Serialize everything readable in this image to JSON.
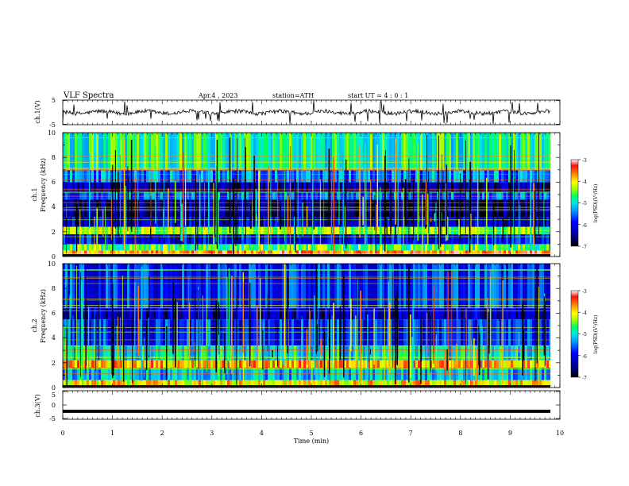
{
  "header": {
    "title": "VLF  Spectra",
    "date": "Apr.4  , 2023",
    "station": "station=ATH",
    "start": "start  UT  =   4  : 0   : 1"
  },
  "chart_data": [
    {
      "type": "line",
      "panel": "ch1-waveform",
      "ylabel": "ch.1(V)",
      "ylim": [
        -5,
        5
      ],
      "yticks": [
        "5",
        "-5"
      ],
      "xlim": [
        0,
        10
      ],
      "baseline": 0,
      "spike_count_approx": 25
    },
    {
      "type": "heatmap",
      "panel": "ch1-spectrogram",
      "ylabel_line1": "ch.1",
      "ylabel_line2": "Frequency  (kHz)",
      "ylim": [
        0,
        10
      ],
      "yticks": [
        "0",
        "2",
        "4",
        "6",
        "8",
        "10"
      ],
      "xlim": [
        0,
        9.8
      ],
      "colorbar": {
        "label": "log(PSD)(V²/Hz)",
        "range": [
          -7,
          -3
        ],
        "ticks": [
          "-3",
          "-4",
          "-5",
          "-6",
          "-7"
        ]
      },
      "bands": [
        {
          "f": [
            0,
            0.5
          ],
          "level": -3.6
        },
        {
          "f": [
            0.5,
            1.0
          ],
          "level": -4.6
        },
        {
          "f": [
            1.0,
            1.8
          ],
          "level": -6.0
        },
        {
          "f": [
            1.8,
            2.4
          ],
          "level": -4.4
        },
        {
          "f": [
            2.4,
            3.2
          ],
          "level": -6.2
        },
        {
          "f": [
            3.2,
            4.6
          ],
          "level": -6.6
        },
        {
          "f": [
            4.6,
            5.2
          ],
          "level": -5.6
        },
        {
          "f": [
            5.2,
            6.0
          ],
          "level": -6.4
        },
        {
          "f": [
            6.0,
            7.0
          ],
          "level": -5.4
        },
        {
          "f": [
            7.0,
            10.0
          ],
          "level": -4.8
        }
      ]
    },
    {
      "type": "heatmap",
      "panel": "ch2-spectrogram",
      "ylabel_line1": "ch.2",
      "ylabel_line2": "Frequency  (kHz)",
      "ylim": [
        0,
        10
      ],
      "yticks": [
        "0",
        "2",
        "4",
        "6",
        "8",
        "10"
      ],
      "xlim": [
        0,
        9.8
      ],
      "colorbar": {
        "label": "log(PSD)(V²/Hz)",
        "range": [
          -7,
          -3
        ],
        "ticks": [
          "-3",
          "-4",
          "-5",
          "-6",
          "-7"
        ]
      },
      "bands": [
        {
          "f": [
            0,
            0.6
          ],
          "level": -4.0
        },
        {
          "f": [
            0.6,
            1.6
          ],
          "level": -5.2
        },
        {
          "f": [
            1.6,
            2.2
          ],
          "level": -3.8
        },
        {
          "f": [
            2.2,
            3.4
          ],
          "level": -5.0
        },
        {
          "f": [
            3.4,
            5.5
          ],
          "level": -5.8
        },
        {
          "f": [
            5.5,
            6.4
          ],
          "level": -6.3
        },
        {
          "f": [
            6.4,
            10.0
          ],
          "level": -5.8
        }
      ]
    },
    {
      "type": "line",
      "panel": "ch3-waveform",
      "ylabel": "ch.3(V)",
      "ylim": [
        -5,
        5
      ],
      "yticks": [
        "5",
        "0",
        "-5"
      ],
      "xlim": [
        0,
        10
      ],
      "level": -2.2
    }
  ],
  "xaxis": {
    "label": "Time  (min)",
    "ticks": [
      "0",
      "1",
      "2",
      "3",
      "4",
      "5",
      "6",
      "7",
      "8",
      "9",
      "10"
    ]
  },
  "colors": {
    "scale": [
      "#000080",
      "#0000ff",
      "#0080ff",
      "#00d8ff",
      "#00ff80",
      "#80ff00",
      "#ffff00",
      "#ff8000",
      "#ff0000",
      "#ffffff"
    ]
  }
}
